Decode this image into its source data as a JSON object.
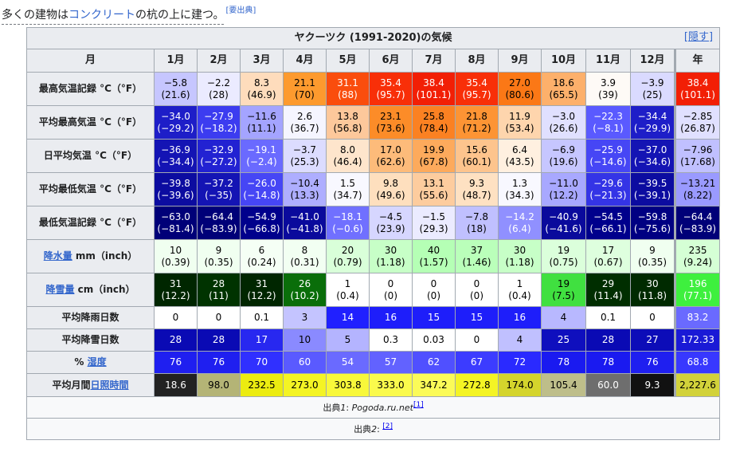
{
  "intro": {
    "prefix": "多くの建物は",
    "link": "コンクリート",
    "suffix": "の杭の上に建つ。",
    "note": "[要出典]"
  },
  "table": {
    "title": "ヤクーツク (1991-2020)の気候",
    "hide_label": "[隠す]",
    "header": {
      "row_label": "月",
      "months": [
        "1月",
        "2月",
        "3月",
        "4月",
        "5月",
        "6月",
        "7月",
        "8月",
        "9月",
        "10月",
        "11月",
        "12月"
      ],
      "year": "年"
    },
    "rows": [
      {
        "label": "最高気温記録 °C（°F）",
        "link": false,
        "kind": "dbl",
        "cells": [
          {
            "v": "−5.8",
            "s": "(21.6)",
            "bg": "#c6c6ff",
            "fg": "#000000"
          },
          {
            "v": "−2.2",
            "s": "(28)",
            "bg": "#ebebff",
            "fg": "#000000"
          },
          {
            "v": "8.3",
            "s": "(46.9)",
            "bg": "#fedcbc",
            "fg": "#000000"
          },
          {
            "v": "21.1",
            "s": "(70)",
            "bg": "#fd9a2e",
            "fg": "#000000"
          },
          {
            "v": "31.1",
            "s": "(88)",
            "bg": "#fa4d0d",
            "fg": "#ffffff"
          },
          {
            "v": "35.4",
            "s": "(95.7)",
            "bg": "#f82f08",
            "fg": "#ffffff"
          },
          {
            "v": "38.4",
            "s": "(101.1)",
            "bg": "#f21f05",
            "fg": "#ffffff"
          },
          {
            "v": "35.4",
            "s": "(95.7)",
            "bg": "#f82f08",
            "fg": "#ffffff"
          },
          {
            "v": "27.0",
            "s": "(80.6)",
            "bg": "#fb7816",
            "fg": "#000000"
          },
          {
            "v": "18.6",
            "s": "(65.5)",
            "bg": "#fdb06b",
            "fg": "#000000"
          },
          {
            "v": "3.9",
            "s": "(39)",
            "bg": "#fefaf6",
            "fg": "#000000"
          },
          {
            "v": "−3.9",
            "s": "(25)",
            "bg": "#dadaff",
            "fg": "#000000"
          },
          {
            "v": "38.4",
            "s": "(101.1)",
            "bg": "#f21f05",
            "fg": "#ffffff"
          }
        ]
      },
      {
        "label": "平均最高気温 °C（°F）",
        "link": false,
        "kind": "dbl",
        "cells": [
          {
            "v": "−34.0",
            "s": "(−29.2)",
            "bg": "#1e1ec8",
            "fg": "#ffffff"
          },
          {
            "v": "−27.9",
            "s": "(−18.2)",
            "bg": "#3c3cf0",
            "fg": "#ffffff"
          },
          {
            "v": "−11.6",
            "s": "(11.1)",
            "bg": "#a4a4ff",
            "fg": "#000000"
          },
          {
            "v": "2.6",
            "s": "(36.7)",
            "bg": "#f5f5ff",
            "fg": "#000000"
          },
          {
            "v": "13.8",
            "s": "(56.8)",
            "bg": "#fdc89b",
            "fg": "#000000"
          },
          {
            "v": "23.1",
            "s": "(73.6)",
            "bg": "#fc8c28",
            "fg": "#000000"
          },
          {
            "v": "25.8",
            "s": "(78.4)",
            "bg": "#fb8122",
            "fg": "#000000"
          },
          {
            "v": "21.8",
            "s": "(71.2)",
            "bg": "#fd9434",
            "fg": "#000000"
          },
          {
            "v": "11.9",
            "s": "(53.4)",
            "bg": "#fed5ad",
            "fg": "#000000"
          },
          {
            "v": "−3.0",
            "s": "(26.6)",
            "bg": "#e0e0ff",
            "fg": "#000000"
          },
          {
            "v": "−22.3",
            "s": "(−8.1)",
            "bg": "#5a5aff",
            "fg": "#ffffff"
          },
          {
            "v": "−34.4",
            "s": "(−29.9)",
            "bg": "#1e1ec8",
            "fg": "#ffffff"
          },
          {
            "v": "−2.85",
            "s": "(26.87)",
            "bg": "#e0e0ff",
            "fg": "#000000"
          }
        ]
      },
      {
        "label": "日平均気温 °C（°F）",
        "link": false,
        "kind": "dbl",
        "cells": [
          {
            "v": "−36.9",
            "s": "(−34.4)",
            "bg": "#1414b4",
            "fg": "#ffffff"
          },
          {
            "v": "−32.9",
            "s": "(−27.2)",
            "bg": "#2222d2",
            "fg": "#ffffff"
          },
          {
            "v": "−19.1",
            "s": "(−2.4)",
            "bg": "#6a6aff",
            "fg": "#ffffff"
          },
          {
            "v": "−3.7",
            "s": "(25.3)",
            "bg": "#dcdcff",
            "fg": "#000000"
          },
          {
            "v": "8.0",
            "s": "(46.4)",
            "bg": "#fee5cc",
            "fg": "#000000"
          },
          {
            "v": "17.0",
            "s": "(62.6)",
            "bg": "#fdbb7a",
            "fg": "#000000"
          },
          {
            "v": "19.9",
            "s": "(67.8)",
            "bg": "#fdaa5c",
            "fg": "#000000"
          },
          {
            "v": "15.6",
            "s": "(60.1)",
            "bg": "#fdc48d",
            "fg": "#000000"
          },
          {
            "v": "6.4",
            "s": "(43.5)",
            "bg": "#fff0e0",
            "fg": "#000000"
          },
          {
            "v": "−6.9",
            "s": "(19.6)",
            "bg": "#c6c6ff",
            "fg": "#000000"
          },
          {
            "v": "−25.9",
            "s": "(−14.6)",
            "bg": "#4646f5",
            "fg": "#ffffff"
          },
          {
            "v": "−37.0",
            "s": "(−34.6)",
            "bg": "#1414b4",
            "fg": "#ffffff"
          },
          {
            "v": "−7.96",
            "s": "(17.68)",
            "bg": "#c0c0ff",
            "fg": "#000000"
          }
        ]
      },
      {
        "label": "平均最低気温 °C（°F）",
        "link": false,
        "kind": "dbl",
        "cells": [
          {
            "v": "−39.8",
            "s": "(−39.6)",
            "bg": "#0c0ca0",
            "fg": "#ffffff"
          },
          {
            "v": "−37.2",
            "s": "(−35)",
            "bg": "#1414b4",
            "fg": "#ffffff"
          },
          {
            "v": "−26.0",
            "s": "(−14.8)",
            "bg": "#4646f5",
            "fg": "#ffffff"
          },
          {
            "v": "−10.4",
            "s": "(13.3)",
            "bg": "#aeaeff",
            "fg": "#000000"
          },
          {
            "v": "1.5",
            "s": "(34.7)",
            "bg": "#f8f8ff",
            "fg": "#000000"
          },
          {
            "v": "9.8",
            "s": "(49.6)",
            "bg": "#fedfbe",
            "fg": "#000000"
          },
          {
            "v": "13.1",
            "s": "(55.6)",
            "bg": "#fdcc9e",
            "fg": "#000000"
          },
          {
            "v": "9.3",
            "s": "(48.7)",
            "bg": "#fee1c2",
            "fg": "#000000"
          },
          {
            "v": "1.3",
            "s": "(34.3)",
            "bg": "#f8f8ff",
            "fg": "#000000"
          },
          {
            "v": "−11.0",
            "s": "(12.2)",
            "bg": "#a8a8ff",
            "fg": "#000000"
          },
          {
            "v": "−29.6",
            "s": "(−21.3)",
            "bg": "#3434e6",
            "fg": "#ffffff"
          },
          {
            "v": "−39.5",
            "s": "(−39.1)",
            "bg": "#0c0ca0",
            "fg": "#ffffff"
          },
          {
            "v": "−13.21",
            "s": "(8.22)",
            "bg": "#9a9aff",
            "fg": "#000000"
          }
        ]
      },
      {
        "label": "最低気温記録 °C（°F）",
        "link": false,
        "kind": "dbl",
        "cells": [
          {
            "v": "−63.0",
            "s": "(−81.4)",
            "bg": "#000078",
            "fg": "#ffffff"
          },
          {
            "v": "−64.4",
            "s": "(−83.9)",
            "bg": "#000078",
            "fg": "#ffffff"
          },
          {
            "v": "−54.9",
            "s": "(−66.8)",
            "bg": "#00008c",
            "fg": "#ffffff"
          },
          {
            "v": "−41.0",
            "s": "(−41.8)",
            "bg": "#0a0a9c",
            "fg": "#ffffff"
          },
          {
            "v": "−18.1",
            "s": "(−0.6)",
            "bg": "#7070ff",
            "fg": "#ffffff"
          },
          {
            "v": "−4.5",
            "s": "(23.9)",
            "bg": "#d6d6ff",
            "fg": "#000000"
          },
          {
            "v": "−1.5",
            "s": "(29.3)",
            "bg": "#ebebff",
            "fg": "#000000"
          },
          {
            "v": "−7.8",
            "s": "(18)",
            "bg": "#c0c0ff",
            "fg": "#000000"
          },
          {
            "v": "−14.2",
            "s": "(6.4)",
            "bg": "#9090ff",
            "fg": "#ffffff"
          },
          {
            "v": "−40.9",
            "s": "(−41.6)",
            "bg": "#0a0a9c",
            "fg": "#ffffff"
          },
          {
            "v": "−54.5",
            "s": "(−66.1)",
            "bg": "#00008c",
            "fg": "#ffffff"
          },
          {
            "v": "−59.8",
            "s": "(−75.6)",
            "bg": "#000082",
            "fg": "#ffffff"
          },
          {
            "v": "−64.4",
            "s": "(−83.9)",
            "bg": "#000078",
            "fg": "#ffffff"
          }
        ]
      },
      {
        "label": "降水量 mm（inch）",
        "link": true,
        "link_text": "降水量",
        "label_rest": " mm（inch）",
        "kind": "dbl",
        "cells": [
          {
            "v": "10",
            "s": "(0.39)",
            "bg": "#f0fff0",
            "fg": "#000000"
          },
          {
            "v": "9",
            "s": "(0.35)",
            "bg": "#f0fff0",
            "fg": "#000000"
          },
          {
            "v": "6",
            "s": "(0.24)",
            "bg": "#f5fff5",
            "fg": "#000000"
          },
          {
            "v": "8",
            "s": "(0.31)",
            "bg": "#f2fff2",
            "fg": "#000000"
          },
          {
            "v": "20",
            "s": "(0.79)",
            "bg": "#d9ffd9",
            "fg": "#000000"
          },
          {
            "v": "30",
            "s": "(1.18)",
            "bg": "#c7ffc7",
            "fg": "#000000"
          },
          {
            "v": "40",
            "s": "(1.57)",
            "bg": "#b5ffb5",
            "fg": "#000000"
          },
          {
            "v": "37",
            "s": "(1.46)",
            "bg": "#baffba",
            "fg": "#000000"
          },
          {
            "v": "30",
            "s": "(1.18)",
            "bg": "#c7ffc7",
            "fg": "#000000"
          },
          {
            "v": "19",
            "s": "(0.75)",
            "bg": "#dbffdb",
            "fg": "#000000"
          },
          {
            "v": "17",
            "s": "(0.67)",
            "bg": "#deffde",
            "fg": "#000000"
          },
          {
            "v": "9",
            "s": "(0.35)",
            "bg": "#f0fff0",
            "fg": "#000000"
          },
          {
            "v": "235",
            "s": "(9.24)",
            "bg": "#d5ffd5",
            "fg": "#000000"
          }
        ]
      },
      {
        "label": "降雪量 cm（inch）",
        "link": true,
        "link_text": "降雪量",
        "label_rest": " cm（inch）",
        "kind": "dbl",
        "cells": [
          {
            "v": "31",
            "s": "(12.2)",
            "bg": "#002600",
            "fg": "#ffffff"
          },
          {
            "v": "28",
            "s": "(11)",
            "bg": "#003300",
            "fg": "#ffffff"
          },
          {
            "v": "31",
            "s": "(12.2)",
            "bg": "#002600",
            "fg": "#ffffff"
          },
          {
            "v": "26",
            "s": "(10.2)",
            "bg": "#0a6e0a",
            "fg": "#ffffff"
          },
          {
            "v": "1",
            "s": "(0.4)",
            "bg": "#ffffff",
            "fg": "#000000"
          },
          {
            "v": "0",
            "s": "(0)",
            "bg": "#ffffff",
            "fg": "#000000"
          },
          {
            "v": "0",
            "s": "(0)",
            "bg": "#ffffff",
            "fg": "#000000"
          },
          {
            "v": "0",
            "s": "(0)",
            "bg": "#ffffff",
            "fg": "#000000"
          },
          {
            "v": "1",
            "s": "(0.4)",
            "bg": "#ffffff",
            "fg": "#000000"
          },
          {
            "v": "19",
            "s": "(7.5)",
            "bg": "#40e040",
            "fg": "#000000"
          },
          {
            "v": "29",
            "s": "(11.4)",
            "bg": "#002e00",
            "fg": "#ffffff"
          },
          {
            "v": "30",
            "s": "(11.8)",
            "bg": "#002a00",
            "fg": "#ffffff"
          },
          {
            "v": "196",
            "s": "(77.1)",
            "bg": "#3ef03e",
            "fg": "#ffffff"
          }
        ]
      },
      {
        "label": "平均降雨日数",
        "link": false,
        "kind": "sgl",
        "cells": [
          {
            "v": "0",
            "bg": "#ffffff",
            "fg": "#000000"
          },
          {
            "v": "0",
            "bg": "#ffffff",
            "fg": "#000000"
          },
          {
            "v": "0.1",
            "bg": "#ffffff",
            "fg": "#000000"
          },
          {
            "v": "3",
            "bg": "#c4c4ff",
            "fg": "#000000"
          },
          {
            "v": "14",
            "bg": "#2020ff",
            "fg": "#ffffff"
          },
          {
            "v": "16",
            "bg": "#1e1efa",
            "fg": "#ffffff"
          },
          {
            "v": "15",
            "bg": "#1e1efa",
            "fg": "#ffffff"
          },
          {
            "v": "15",
            "bg": "#1e1efa",
            "fg": "#ffffff"
          },
          {
            "v": "16",
            "bg": "#1e1efa",
            "fg": "#ffffff"
          },
          {
            "v": "4",
            "bg": "#b8b8ff",
            "fg": "#000000"
          },
          {
            "v": "0.1",
            "bg": "#ffffff",
            "fg": "#000000"
          },
          {
            "v": "0",
            "bg": "#ffffff",
            "fg": "#000000"
          },
          {
            "v": "83.2",
            "bg": "#6a6aff",
            "fg": "#ffffff"
          }
        ]
      },
      {
        "label": "平均降雪日数",
        "link": false,
        "kind": "sgl",
        "cells": [
          {
            "v": "28",
            "bg": "#0a0ab4",
            "fg": "#ffffff"
          },
          {
            "v": "28",
            "bg": "#0a0ab4",
            "fg": "#ffffff"
          },
          {
            "v": "17",
            "bg": "#2828f0",
            "fg": "#ffffff"
          },
          {
            "v": "10",
            "bg": "#8a8aff",
            "fg": "#000000"
          },
          {
            "v": "5",
            "bg": "#b4b4ff",
            "fg": "#000000"
          },
          {
            "v": "0.3",
            "bg": "#ffffff",
            "fg": "#000000"
          },
          {
            "v": "0.03",
            "bg": "#ffffff",
            "fg": "#000000"
          },
          {
            "v": "0",
            "bg": "#ffffff",
            "fg": "#000000"
          },
          {
            "v": "4",
            "bg": "#c0c0ff",
            "fg": "#000000"
          },
          {
            "v": "25",
            "bg": "#0f0fbe",
            "fg": "#ffffff"
          },
          {
            "v": "28",
            "bg": "#0a0ab4",
            "fg": "#ffffff"
          },
          {
            "v": "27",
            "bg": "#0c0cb8",
            "fg": "#ffffff"
          },
          {
            "v": "172.33",
            "bg": "#1a1ad6",
            "fg": "#ffffff"
          }
        ]
      },
      {
        "label": "% 湿度",
        "link": true,
        "link_text": "湿度",
        "label_prefix": "% ",
        "kind": "sgl",
        "cells": [
          {
            "v": "76",
            "bg": "#1f1ff0",
            "fg": "#ffffff"
          },
          {
            "v": "76",
            "bg": "#1f1ff0",
            "fg": "#ffffff"
          },
          {
            "v": "70",
            "bg": "#3030ff",
            "fg": "#ffffff"
          },
          {
            "v": "60",
            "bg": "#5a5aff",
            "fg": "#ffffff"
          },
          {
            "v": "54",
            "bg": "#6a6aff",
            "fg": "#ffffff"
          },
          {
            "v": "57",
            "bg": "#6262ff",
            "fg": "#ffffff"
          },
          {
            "v": "62",
            "bg": "#5050ff",
            "fg": "#ffffff"
          },
          {
            "v": "67",
            "bg": "#3c3cff",
            "fg": "#ffffff"
          },
          {
            "v": "72",
            "bg": "#2a2aff",
            "fg": "#ffffff"
          },
          {
            "v": "78",
            "bg": "#1a1af0",
            "fg": "#ffffff"
          },
          {
            "v": "78",
            "bg": "#1a1af0",
            "fg": "#ffffff"
          },
          {
            "v": "76",
            "bg": "#1f1ff0",
            "fg": "#ffffff"
          },
          {
            "v": "68.8",
            "bg": "#3838ff",
            "fg": "#ffffff"
          }
        ]
      },
      {
        "label": "平均月間日照時間",
        "link": true,
        "link_text": "日照時間",
        "label_prefix": "平均月間",
        "kind": "sgl2",
        "cells": [
          {
            "v": "18.6",
            "bg": "#222222",
            "fg": "#ffffff"
          },
          {
            "v": "98.0",
            "bg": "#b4b476",
            "fg": "#000000"
          },
          {
            "v": "232.5",
            "bg": "#ecec10",
            "fg": "#000000"
          },
          {
            "v": "273.0",
            "bg": "#f4f424",
            "fg": "#000000"
          },
          {
            "v": "303.8",
            "bg": "#f8f83a",
            "fg": "#000000"
          },
          {
            "v": "333.0",
            "bg": "#fafa4c",
            "fg": "#000000"
          },
          {
            "v": "347.2",
            "bg": "#fbfb58",
            "fg": "#000000"
          },
          {
            "v": "272.8",
            "bg": "#f4f424",
            "fg": "#000000"
          },
          {
            "v": "174.0",
            "bg": "#d4d42c",
            "fg": "#000000"
          },
          {
            "v": "105.4",
            "bg": "#bebe8a",
            "fg": "#000000"
          },
          {
            "v": "60.0",
            "bg": "#6e6e6e",
            "fg": "#ffffff"
          },
          {
            "v": "9.3",
            "bg": "#111111",
            "fg": "#ffffff"
          },
          {
            "v": "2,227.6",
            "bg": "#d2d23a",
            "fg": "#000000"
          }
        ]
      }
    ],
    "source1": {
      "prefix": "出典",
      "num": "1",
      "colon": ": ",
      "name": "Pogoda.ru.net",
      "ref": "[1]"
    },
    "source2": {
      "prefix": "出典",
      "num": "2",
      "colon": ": ",
      "ref": "[2]"
    }
  }
}
